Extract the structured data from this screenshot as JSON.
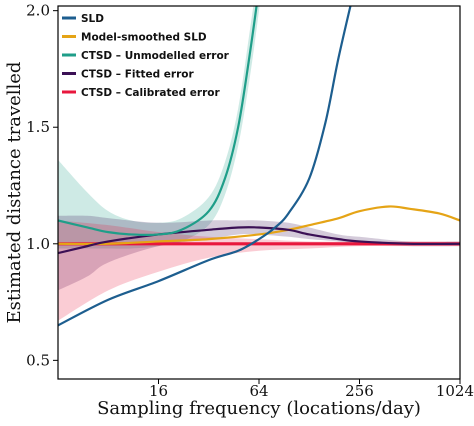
{
  "chart_data": {
    "type": "line",
    "title": "",
    "xlabel": "Sampling frequency (locations/day)",
    "ylabel": "Estimated distance travelled",
    "xscale": "log2",
    "xlim": [
      4,
      1024
    ],
    "ylim": [
      0.42,
      2.02
    ],
    "x_ticks": [
      {
        "value": 16,
        "label": "16"
      },
      {
        "value": 64,
        "label": "64"
      },
      {
        "value": 256,
        "label": "256"
      },
      {
        "value": 1024,
        "label": "1024"
      }
    ],
    "y_ticks": [
      {
        "value": 0.5,
        "label": "0.5"
      },
      {
        "value": 1.0,
        "label": "1.0"
      },
      {
        "value": 1.5,
        "label": "1.5"
      },
      {
        "value": 2.0,
        "label": "2.0"
      }
    ],
    "reference_line": {
      "value": 1.0,
      "style": "dashed",
      "color": "#000000"
    },
    "legend_position": "top-left",
    "series": [
      {
        "name": "SLD",
        "color": "#1d5e8f",
        "x": [
          4,
          8,
          16,
          32,
          48,
          64,
          80,
          96,
          128,
          160,
          192,
          240
        ],
        "y": [
          0.65,
          0.76,
          0.84,
          0.93,
          0.97,
          1.02,
          1.07,
          1.13,
          1.28,
          1.52,
          1.8,
          2.1
        ]
      },
      {
        "name": "Model-smoothed SLD",
        "color": "#e5a416",
        "x": [
          4,
          8,
          16,
          32,
          64,
          96,
          128,
          192,
          256,
          384,
          512,
          768,
          1024
        ],
        "y": [
          1.0,
          1.0,
          1.01,
          1.02,
          1.04,
          1.06,
          1.08,
          1.11,
          1.14,
          1.16,
          1.15,
          1.13,
          1.1
        ]
      },
      {
        "name": "CTSD – Unmodelled error",
        "color": "#1f9e89",
        "x": [
          4,
          6,
          8,
          11,
          16,
          22,
          32,
          40,
          48,
          56,
          64,
          72
        ],
        "y": [
          1.1,
          1.07,
          1.05,
          1.04,
          1.04,
          1.06,
          1.14,
          1.28,
          1.5,
          1.8,
          2.1,
          2.4
        ],
        "band_lower": [
          0.98,
          0.98,
          0.98,
          0.98,
          0.99,
          1.01,
          1.08,
          1.21,
          1.42,
          1.7,
          2.0,
          2.3
        ],
        "band_upper": [
          1.36,
          1.22,
          1.14,
          1.1,
          1.09,
          1.11,
          1.2,
          1.35,
          1.58,
          1.9,
          2.2,
          2.5
        ]
      },
      {
        "name": "CTSD – Fitted error",
        "color": "#3b1055",
        "x": [
          4,
          6,
          8,
          16,
          32,
          48,
          64,
          96,
          128,
          192,
          256,
          512,
          1024
        ],
        "y": [
          0.96,
          0.99,
          1.01,
          1.04,
          1.06,
          1.07,
          1.07,
          1.06,
          1.04,
          1.02,
          1.01,
          1.0,
          1.0
        ],
        "band_lower": [
          0.8,
          0.86,
          0.92,
          0.99,
          1.02,
          1.04,
          1.04,
          1.03,
          1.02,
          1.01,
          1.0,
          0.99,
          0.99
        ],
        "band_upper": [
          1.12,
          1.12,
          1.11,
          1.09,
          1.1,
          1.1,
          1.1,
          1.09,
          1.07,
          1.04,
          1.03,
          1.01,
          1.01
        ]
      },
      {
        "name": "CTSD – Calibrated error",
        "color": "#e8173d",
        "x": [
          4,
          8,
          16,
          32,
          64,
          128,
          256,
          512,
          1024
        ],
        "y": [
          1.0,
          1.0,
          1.0,
          1.0,
          1.0,
          1.0,
          1.0,
          1.0,
          1.0
        ],
        "band_lower": [
          0.67,
          0.8,
          0.88,
          0.94,
          0.97,
          0.98,
          0.99,
          0.99,
          0.99
        ],
        "band_upper": [
          1.1,
          1.08,
          1.05,
          1.03,
          1.02,
          1.01,
          1.01,
          1.01,
          1.01
        ]
      }
    ]
  }
}
